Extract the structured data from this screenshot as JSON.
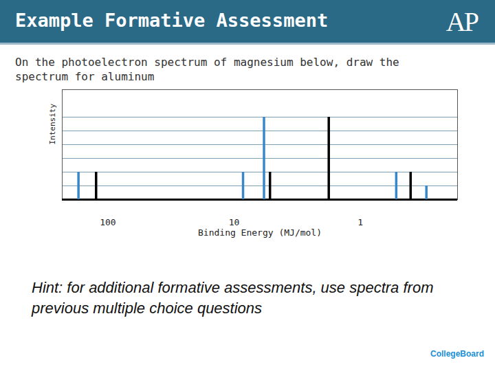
{
  "slide": {
    "title": "Example Formative Assessment",
    "logo": "AP",
    "hint": "Hint: for additional formative assessments, use spectra from previous multiple choice questions",
    "footer_logo": "CollegeBoard"
  },
  "chart_data": {
    "type": "spectrum",
    "title": "On the photoelectron spectrum of magnesium below, draw the spectrum for aluminum",
    "x_label": "Binding Energy (MJ/mol)",
    "y_label": "Intensity",
    "log": "x",
    "xlim": [
      230,
      0.17
    ],
    "xticks": [
      100,
      10,
      1
    ],
    "ylim": [
      0,
      8
    ],
    "yticks": [
      0,
      1,
      2,
      3,
      4,
      5,
      6
    ],
    "grid": true,
    "tick_labels": "x",
    "series": [
      {
        "color": "#000000",
        "x": [
          124,
          5.2,
          1.78,
          0.4
        ],
        "values": [
          2,
          2,
          6,
          2
        ]
      },
      {
        "color": "#3a87c8",
        "x": [
          171,
          8.5,
          5.8,
          0.52,
          0.3
        ],
        "values": [
          2,
          2,
          6,
          2,
          1
        ]
      }
    ]
  }
}
